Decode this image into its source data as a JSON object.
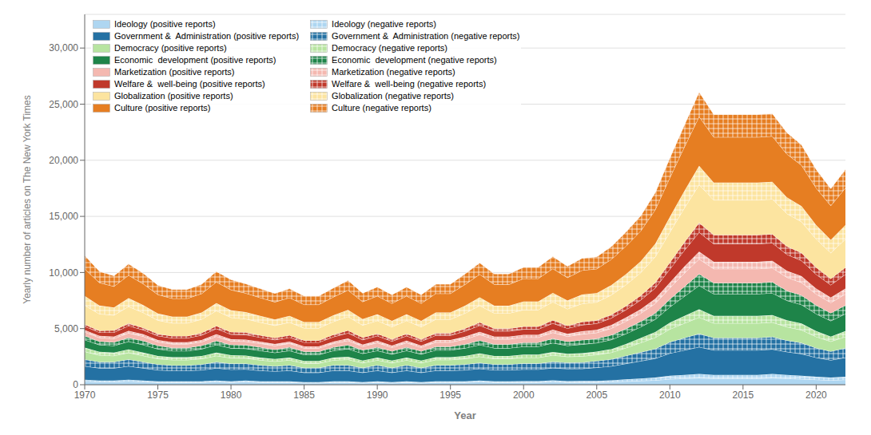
{
  "chart_data": {
    "type": "area",
    "stacked": true,
    "xlabel": "Year",
    "ylabel": "Yearly number of articles on The New York Times",
    "x": [
      1970,
      1971,
      1972,
      1973,
      1974,
      1975,
      1976,
      1977,
      1978,
      1979,
      1980,
      1981,
      1982,
      1983,
      1984,
      1985,
      1986,
      1987,
      1988,
      1989,
      1990,
      1991,
      1992,
      1993,
      1994,
      1995,
      1996,
      1997,
      1998,
      1999,
      2000,
      2001,
      2002,
      2003,
      2004,
      2005,
      2006,
      2007,
      2008,
      2009,
      2010,
      2011,
      2012,
      2013,
      2014,
      2015,
      2016,
      2017,
      2018,
      2019,
      2020,
      2021,
      2022
    ],
    "xlim": [
      1970,
      2022
    ],
    "xticks": [
      1970,
      1975,
      1980,
      1985,
      1990,
      1995,
      2000,
      2005,
      2010,
      2015,
      2020
    ],
    "ylim": [
      0,
      33000
    ],
    "yticks": [
      0,
      {
        "value": 5000,
        "label": "5,000"
      },
      {
        "value": 10000,
        "label": "10,000"
      },
      {
        "value": 15000,
        "label": "15,000"
      },
      {
        "value": 20000,
        "label": "20,000"
      },
      {
        "value": 25000,
        "label": "25,000"
      },
      {
        "value": 30000,
        "label": "30,000"
      }
    ],
    "grid": true,
    "legend": "upper left",
    "series": [
      {
        "name": "Ideology (positive reports)",
        "color": "#aed6f1",
        "values": [
          300,
          250,
          250,
          300,
          250,
          200,
          200,
          200,
          200,
          250,
          200,
          250,
          200,
          200,
          200,
          150,
          150,
          200,
          200,
          150,
          200,
          150,
          200,
          150,
          200,
          200,
          200,
          250,
          200,
          200,
          200,
          200,
          250,
          200,
          200,
          200,
          250,
          300,
          350,
          400,
          500,
          550,
          600,
          550,
          550,
          550,
          550,
          600,
          550,
          500,
          450,
          400,
          450
        ]
      },
      {
        "name": "Ideology (negative reports)",
        "color": "#aed6f1",
        "values": [
          150,
          130,
          130,
          150,
          130,
          110,
          100,
          100,
          110,
          130,
          110,
          130,
          110,
          100,
          110,
          80,
          80,
          110,
          110,
          80,
          110,
          80,
          110,
          80,
          110,
          110,
          110,
          130,
          110,
          110,
          120,
          120,
          140,
          120,
          130,
          130,
          150,
          180,
          210,
          240,
          300,
          330,
          360,
          330,
          330,
          330,
          330,
          360,
          330,
          300,
          270,
          240,
          270
        ]
      },
      {
        "name": "Government &  Administration (positive reports)",
        "color": "#2471a3",
        "values": [
          1200,
          1100,
          1100,
          1200,
          1100,
          1000,
          950,
          950,
          1000,
          1100,
          1050,
          1000,
          950,
          900,
          950,
          850,
          850,
          950,
          950,
          850,
          950,
          850,
          950,
          850,
          950,
          950,
          1000,
          1050,
          1000,
          1000,
          1050,
          1050,
          1100,
          1100,
          1100,
          1200,
          1250,
          1400,
          1550,
          1700,
          2000,
          2200,
          2400,
          2200,
          2200,
          2200,
          2200,
          2200,
          2050,
          1950,
          1700,
          1550,
          1700
        ]
      },
      {
        "name": "Government &  Administration (negative reports)",
        "color": "#2471a3",
        "values": [
          600,
          550,
          550,
          600,
          550,
          500,
          480,
          480,
          500,
          550,
          520,
          500,
          480,
          450,
          480,
          430,
          430,
          480,
          480,
          430,
          480,
          430,
          480,
          430,
          480,
          480,
          500,
          530,
          500,
          500,
          530,
          530,
          560,
          560,
          560,
          590,
          620,
          700,
          780,
          860,
          1000,
          1100,
          1190,
          1100,
          1100,
          1100,
          1100,
          1100,
          1020,
          975,
          855,
          780,
          855
        ]
      },
      {
        "name": "Democracy (positive reports)",
        "color": "#b7e4a0",
        "values": [
          700,
          600,
          550,
          600,
          550,
          500,
          480,
          480,
          500,
          550,
          500,
          480,
          450,
          430,
          450,
          400,
          400,
          450,
          500,
          430,
          450,
          430,
          450,
          430,
          480,
          480,
          500,
          550,
          500,
          500,
          520,
          520,
          580,
          520,
          550,
          550,
          600,
          700,
          850,
          1000,
          1150,
          1300,
          1450,
          1300,
          1300,
          1300,
          1300,
          1300,
          1200,
          1150,
          1000,
          880,
          1000
        ]
      },
      {
        "name": "Democracy (negative reports)",
        "color": "#b7e4a0",
        "values": [
          350,
          300,
          275,
          300,
          275,
          250,
          240,
          240,
          250,
          275,
          250,
          240,
          225,
          215,
          225,
          200,
          200,
          225,
          250,
          215,
          225,
          215,
          225,
          215,
          240,
          240,
          250,
          275,
          250,
          250,
          260,
          260,
          290,
          260,
          275,
          275,
          300,
          350,
          425,
          500,
          575,
          650,
          725,
          650,
          650,
          650,
          650,
          650,
          600,
          575,
          500,
          440,
          500
        ]
      },
      {
        "name": "Economic  development (positive reports)",
        "color": "#1e8449",
        "values": [
          700,
          620,
          620,
          700,
          700,
          620,
          560,
          560,
          620,
          700,
          620,
          620,
          620,
          560,
          620,
          560,
          560,
          620,
          700,
          620,
          620,
          560,
          620,
          560,
          620,
          620,
          700,
          770,
          700,
          700,
          720,
          720,
          800,
          720,
          780,
          780,
          840,
          910,
          980,
          1120,
          1400,
          1750,
          2100,
          1960,
          1960,
          1960,
          1960,
          1960,
          1750,
          1680,
          1540,
          1400,
          1540
        ]
      },
      {
        "name": "Economic  development (negative reports)",
        "color": "#1e8449",
        "values": [
          350,
          310,
          310,
          350,
          350,
          310,
          280,
          280,
          310,
          350,
          310,
          310,
          310,
          280,
          310,
          280,
          280,
          310,
          350,
          310,
          310,
          280,
          310,
          280,
          310,
          310,
          350,
          385,
          350,
          350,
          360,
          360,
          400,
          360,
          390,
          390,
          420,
          455,
          490,
          560,
          700,
          875,
          1050,
          980,
          980,
          980,
          980,
          980,
          875,
          840,
          770,
          700,
          770
        ]
      },
      {
        "name": "Marketization (positive reports)",
        "color": "#f4b8b0",
        "values": [
          350,
          330,
          330,
          400,
          400,
          330,
          330,
          330,
          330,
          400,
          330,
          330,
          330,
          330,
          330,
          310,
          310,
          330,
          390,
          330,
          390,
          330,
          390,
          330,
          390,
          390,
          450,
          520,
          450,
          450,
          460,
          460,
          530,
          460,
          520,
          520,
          590,
          660,
          720,
          850,
          990,
          1190,
          1320,
          1260,
          1260,
          1260,
          1260,
          1260,
          1190,
          1130,
          990,
          920,
          990
        ]
      },
      {
        "name": "Marketization (negative reports)",
        "color": "#f4b8b0",
        "values": [
          175,
          165,
          165,
          200,
          200,
          165,
          165,
          165,
          165,
          200,
          165,
          165,
          165,
          165,
          165,
          155,
          155,
          165,
          195,
          165,
          195,
          165,
          195,
          165,
          195,
          195,
          225,
          260,
          225,
          225,
          230,
          230,
          265,
          230,
          260,
          260,
          295,
          330,
          360,
          425,
          495,
          595,
          660,
          630,
          630,
          630,
          630,
          630,
          595,
          565,
          495,
          460,
          495
        ]
      },
      {
        "name": "Welfare &  well-being (positive reports)",
        "color": "#c0392b",
        "values": [
          330,
          310,
          380,
          450,
          380,
          370,
          370,
          370,
          430,
          490,
          430,
          430,
          380,
          370,
          380,
          360,
          360,
          420,
          480,
          420,
          420,
          380,
          420,
          380,
          420,
          420,
          490,
          560,
          490,
          490,
          490,
          490,
          560,
          490,
          560,
          560,
          620,
          690,
          820,
          960,
          1190,
          1450,
          1720,
          1590,
          1590,
          1590,
          1590,
          1590,
          1450,
          1390,
          1260,
          1120,
          1260
        ]
      },
      {
        "name": "Welfare &  well-being (negative reports)",
        "color": "#c0392b",
        "values": [
          165,
          155,
          190,
          225,
          190,
          185,
          185,
          185,
          215,
          245,
          215,
          215,
          190,
          185,
          190,
          180,
          180,
          210,
          240,
          210,
          210,
          190,
          210,
          190,
          210,
          210,
          245,
          280,
          245,
          245,
          245,
          245,
          280,
          245,
          280,
          280,
          310,
          345,
          410,
          480,
          595,
          725,
          860,
          795,
          795,
          795,
          795,
          795,
          725,
          695,
          630,
          560,
          630
        ]
      },
      {
        "name": "Globalization (positive reports)",
        "color": "#fce4a0",
        "values": [
          1700,
          1490,
          1350,
          1490,
          1350,
          1200,
          1150,
          1150,
          1200,
          1350,
          1290,
          1200,
          1150,
          1090,
          1150,
          1090,
          1090,
          1150,
          1220,
          1090,
          1150,
          1090,
          1150,
          1090,
          1220,
          1220,
          1350,
          1490,
          1350,
          1350,
          1490,
          1490,
          1620,
          1490,
          1620,
          1620,
          1750,
          1890,
          2030,
          2300,
          2700,
          3050,
          3380,
          3110,
          3110,
          3110,
          3110,
          3110,
          2910,
          2770,
          2510,
          2300,
          2510
        ]
      },
      {
        "name": "Globalization (negative reports)",
        "color": "#fce4a0",
        "values": [
          850,
          745,
          675,
          745,
          675,
          600,
          575,
          575,
          600,
          675,
          645,
          600,
          575,
          545,
          575,
          545,
          545,
          575,
          610,
          545,
          575,
          545,
          575,
          545,
          610,
          610,
          675,
          745,
          675,
          675,
          745,
          745,
          810,
          745,
          810,
          810,
          875,
          945,
          1015,
          1150,
          1350,
          1525,
          1690,
          1555,
          1555,
          1555,
          1555,
          1555,
          1455,
          1385,
          1255,
          1150,
          1255
        ]
      },
      {
        "name": "Culture (positive reports)",
        "color": "#e67e22",
        "values": [
          2400,
          2040,
          1890,
          2040,
          1890,
          1690,
          1620,
          1620,
          1690,
          1890,
          1820,
          1690,
          1620,
          1550,
          1620,
          1550,
          1550,
          1620,
          1750,
          1550,
          1620,
          1550,
          1620,
          1550,
          1690,
          1690,
          1890,
          2040,
          1890,
          1890,
          2040,
          2040,
          2160,
          2040,
          2160,
          2160,
          2300,
          2510,
          2700,
          3050,
          3510,
          3920,
          4390,
          4050,
          4050,
          4050,
          4050,
          4050,
          3850,
          3650,
          3310,
          3050,
          3310
        ]
      },
      {
        "name": "Culture (negative reports)",
        "color": "#e67e22",
        "values": [
          1200,
          1020,
          945,
          1020,
          945,
          845,
          810,
          810,
          845,
          945,
          910,
          845,
          810,
          775,
          810,
          775,
          775,
          810,
          875,
          775,
          810,
          775,
          810,
          775,
          845,
          845,
          945,
          1020,
          945,
          945,
          1020,
          1020,
          1080,
          1020,
          1080,
          1080,
          1150,
          1255,
          1350,
          1525,
          1755,
          1960,
          2195,
          2025,
          2025,
          2025,
          2025,
          2025,
          1925,
          1825,
          1655,
          1525,
          1655
        ]
      }
    ]
  }
}
